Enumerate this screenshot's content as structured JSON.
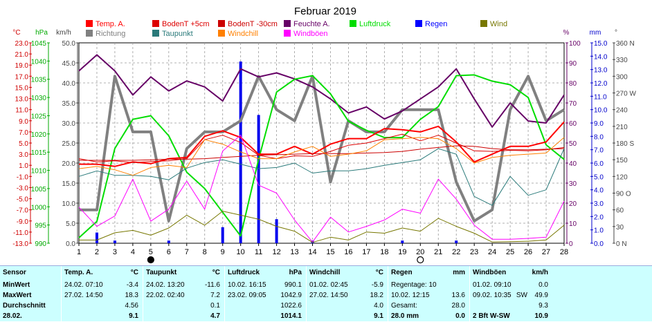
{
  "chart_data": {
    "type": "line",
    "title": "Februar 2019",
    "x": [
      1,
      2,
      3,
      4,
      5,
      6,
      7,
      8,
      9,
      10,
      11,
      12,
      13,
      14,
      15,
      16,
      17,
      18,
      19,
      20,
      21,
      22,
      23,
      24,
      25,
      26,
      27,
      28
    ],
    "x_ticks": [
      "1",
      "2",
      "3",
      "4",
      "5",
      "6",
      "7",
      "8",
      "9",
      "10",
      "11",
      "12",
      "13",
      "14",
      "15",
      "16",
      "17",
      "18",
      "19",
      "20",
      "21",
      "22",
      "23",
      "24",
      "25",
      "26",
      "27",
      "28"
    ],
    "left_axes": [
      {
        "unit": "°C",
        "color": "#d00000",
        "ticks": [
          "23.0",
          "21.0",
          "19.0",
          "17.0",
          "15.0",
          "13.0",
          "11.0",
          "9.0",
          "7.0",
          "5.0",
          "3.0",
          "1.0",
          "-1.0",
          "-3.0",
          "-5.0",
          "-7.0",
          "-9.0",
          "-11.0",
          "-13.0"
        ]
      },
      {
        "unit": "hPa",
        "color": "#00aa00",
        "ticks": [
          "1045",
          "1040",
          "1035",
          "1030",
          "1025",
          "1020",
          "1015",
          "1010",
          "1005",
          "1000",
          "995",
          "990"
        ]
      },
      {
        "unit": "km/h",
        "color": "#444444",
        "ticks": [
          "50.0",
          "45.0",
          "40.0",
          "35.0",
          "30.0",
          "25.0",
          "20.0",
          "15.0",
          "10.0",
          "5.0",
          "0.0"
        ]
      }
    ],
    "right_axes": [
      {
        "unit": "%",
        "color": "#660066",
        "ticks": [
          "100",
          "90",
          "80",
          "70",
          "60",
          "50",
          "40",
          "30",
          "20",
          "10",
          "0"
        ]
      },
      {
        "unit": "mm",
        "color": "#0000cc",
        "ticks": [
          "15.0",
          "14.0",
          "13.0",
          "12.0",
          "11.0",
          "10.0",
          "9.0",
          "8.0",
          "7.0",
          "6.0",
          "5.0",
          "4.0",
          "3.0",
          "2.0",
          "1.0",
          "0.0"
        ]
      },
      {
        "unit": "°",
        "color": "#444444",
        "ticks": [
          "360 N",
          "330",
          "300",
          "270 W",
          "240",
          "210",
          "180 S",
          "150",
          "120",
          "90 O",
          "60",
          "30",
          "0 N"
        ]
      }
    ],
    "ylim_temp": [
      -13,
      23
    ],
    "ylim_pressure": [
      990,
      1045
    ],
    "ylim_wind": [
      0,
      50
    ],
    "ylim_humidity": [
      0,
      100
    ],
    "ylim_rain": [
      0,
      15
    ],
    "ylim_direction": [
      0,
      360
    ],
    "legend": [
      {
        "name": "Temp. A.",
        "color": "#ff0000"
      },
      {
        "name": "BodenT +5cm",
        "color": "#dd0000"
      },
      {
        "name": "BodenT -30cm",
        "color": "#cc0000"
      },
      {
        "name": "Feuchte A.",
        "color": "#660066"
      },
      {
        "name": "Luftdruck",
        "color": "#00dd00"
      },
      {
        "name": "Regen",
        "color": "#0000ff"
      },
      {
        "name": "Wind",
        "color": "#777700"
      },
      {
        "name": "Richtung",
        "color": "#808080"
      },
      {
        "name": "Taupunkt",
        "color": "#2a7a7a"
      },
      {
        "name": "Windchill",
        "color": "#ff8000"
      },
      {
        "name": "Windböen",
        "color": "#ff00ff"
      }
    ],
    "series": [
      {
        "name": "Richtung",
        "axis": "direction",
        "color": "#808080",
        "width": 4,
        "values": [
          60,
          60,
          300,
          200,
          200,
          40,
          170,
          200,
          200,
          220,
          300,
          240,
          220,
          300,
          110,
          220,
          200,
          200,
          240,
          240,
          240,
          110,
          40,
          60,
          240,
          300,
          220,
          240
        ]
      },
      {
        "name": "Feuchte A.",
        "axis": "humidity",
        "color": "#660066",
        "width": 2,
        "values": [
          86,
          94,
          86,
          74,
          83,
          76,
          81,
          78,
          71,
          87,
          83,
          85,
          82,
          78,
          72,
          65,
          68,
          62,
          66,
          72,
          78,
          87,
          72,
          58,
          70,
          61,
          60,
          74
        ]
      },
      {
        "name": "Luftdruck",
        "axis": "pressure",
        "color": "#00dd00",
        "width": 2,
        "values": [
          991.5,
          996,
          1016,
          1024,
          1025,
          1019.5,
          1009.5,
          1005,
          998.5,
          992,
          1013,
          1031.5,
          1035,
          1036,
          1031,
          1023.5,
          1021,
          1019,
          1019,
          1024,
          1027.5,
          1036,
          1036.2,
          1034.5,
          1033.5,
          1030,
          1017,
          1013
        ]
      },
      {
        "name": "Temp. A.",
        "axis": "temp",
        "color": "#ff0000",
        "width": 2,
        "values": [
          1.2,
          1.2,
          0.8,
          1.6,
          1.3,
          2.2,
          2.4,
          6.2,
          7.2,
          6.0,
          3.0,
          3.0,
          4.4,
          3.0,
          4.8,
          5.8,
          5.8,
          7.6,
          7.4,
          7.0,
          8.0,
          5.2,
          1.6,
          3.0,
          4.4,
          4.4,
          5.2,
          8.8
        ]
      },
      {
        "name": "BodenT +5cm",
        "axis": "temp",
        "color": "#dd0000",
        "width": 1,
        "values": [
          2.2,
          1.6,
          1.8,
          1.5,
          1.7,
          1.8,
          2.2,
          5.6,
          6.4,
          5.1,
          2.8,
          2.2,
          2.7,
          2.6,
          3.5,
          4.6,
          5.0,
          5.8,
          6.6,
          5.4,
          6.4,
          5.0,
          3.6,
          3.5,
          3.7,
          3.6,
          3.8,
          4.2
        ]
      },
      {
        "name": "BodenT -30cm",
        "axis": "temp",
        "color": "#cc0000",
        "width": 1,
        "values": [
          1.9,
          1.9,
          1.9,
          1.9,
          2.0,
          2.1,
          2.1,
          2.2,
          2.4,
          2.6,
          2.8,
          2.9,
          3.0,
          3.1,
          3.1,
          3.1,
          3.2,
          3.3,
          3.5,
          3.9,
          4.2,
          4.5,
          4.4,
          4.0,
          3.8,
          3.8,
          3.9,
          4.0
        ]
      },
      {
        "name": "Taupunkt",
        "axis": "temp",
        "color": "#2a7a7a",
        "width": 1,
        "values": [
          -1.0,
          0.0,
          -0.8,
          -0.8,
          -1.0,
          -1.6,
          0.5,
          1.5,
          2.0,
          1.2,
          0.4,
          0.6,
          1.4,
          -0.4,
          0.0,
          0.0,
          0.4,
          1.0,
          1.5,
          2.0,
          4.0,
          3.0,
          -4.6,
          -6.2,
          -1.0,
          -4.4,
          -3.4,
          4.0
        ]
      },
      {
        "name": "Windchill",
        "axis": "temp",
        "color": "#ff8000",
        "width": 1,
        "values": [
          0.4,
          0.8,
          0.2,
          -0.8,
          0.6,
          1.0,
          0.6,
          5.6,
          4.8,
          3.4,
          2.2,
          2.2,
          3.4,
          4.4,
          2.6,
          3.0,
          3.6,
          5.6,
          5.8,
          6.0,
          5.8,
          4.0,
          1.4,
          2.4,
          2.8,
          3.0,
          3.2,
          6.0
        ]
      },
      {
        "name": "Windböen",
        "axis": "wind",
        "color": "#ff00ff",
        "width": 1,
        "values": [
          9.0,
          4.2,
          6.8,
          16.0,
          5.5,
          8.5,
          15.5,
          8.5,
          23.0,
          27.0,
          14.5,
          12.5,
          5.8,
          0.3,
          6.5,
          2.8,
          4.2,
          5.8,
          8.5,
          7.5,
          16.0,
          11.0,
          4.5,
          1.0,
          1.0,
          1.2,
          1.5,
          10.5
        ]
      },
      {
        "name": "Wind",
        "axis": "wind",
        "color": "#777700",
        "width": 1,
        "values": [
          0.8,
          0.8,
          2.6,
          3.2,
          2.0,
          3.8,
          7.0,
          4.5,
          8.0,
          7.0,
          6.0,
          4.2,
          3.0,
          0.2,
          1.5,
          0.8,
          2.8,
          2.5,
          3.8,
          3.0,
          6.2,
          4.2,
          2.5,
          0.3,
          0.4,
          0.5,
          0.8,
          4.5
        ]
      },
      {
        "name": "Regen",
        "axis": "rain",
        "type": "bar",
        "color": "#0000ee",
        "values": [
          0.0,
          0.8,
          0.2,
          0.0,
          0.0,
          0.2,
          0.0,
          0.0,
          1.2,
          13.6,
          9.6,
          1.8,
          0.0,
          0.2,
          0.0,
          0.0,
          0.0,
          0.0,
          0.2,
          0.0,
          0.0,
          0.2,
          0.0,
          0.0,
          0.0,
          0.0,
          0.0,
          0.0
        ]
      }
    ],
    "moon_markers": [
      {
        "x": 5,
        "phase": "new"
      },
      {
        "x": 20,
        "phase": "full"
      }
    ],
    "grid": true,
    "legend_placement": "top"
  },
  "stats": {
    "columns": [
      {
        "header": "Sensor",
        "unit": "",
        "rows": [
          {
            "label": "MinWert",
            "val": ""
          },
          {
            "label": "MaxWert",
            "val": ""
          },
          {
            "label": "Durchschnitt",
            "val": ""
          },
          {
            "label": "28.02.",
            "val": ""
          }
        ]
      },
      {
        "header": "Temp. A.",
        "unit": "°C",
        "rows": [
          {
            "label": "24.02. 07:10",
            "val": "-3.4"
          },
          {
            "label": "27.02. 14:50",
            "val": "18.3"
          },
          {
            "label": "",
            "val": "4.56"
          },
          {
            "label": "",
            "val": "9.1"
          }
        ]
      },
      {
        "header": "Taupunkt",
        "unit": "°C",
        "rows": [
          {
            "label": "24.02. 13:20",
            "val": "-11.6"
          },
          {
            "label": "22.02. 02:40",
            "val": "7.2"
          },
          {
            "label": "",
            "val": "0.1"
          },
          {
            "label": "",
            "val": "4.7"
          }
        ]
      },
      {
        "header": "Luftdruck",
        "unit": "hPa",
        "rows": [
          {
            "label": "10.02. 16:15",
            "val": "990.1"
          },
          {
            "label": "23.02. 09:05",
            "val": "1042.9"
          },
          {
            "label": "",
            "val": "1022.6"
          },
          {
            "label": "",
            "val": "1014.1"
          }
        ]
      },
      {
        "header": "Windchill",
        "unit": "°C",
        "rows": [
          {
            "label": "01.02. 02:45",
            "val": "-5.9"
          },
          {
            "label": "27.02. 14:50",
            "val": "18.2"
          },
          {
            "label": "",
            "val": "4.0"
          },
          {
            "label": "",
            "val": "9.1"
          }
        ]
      },
      {
        "header": "Regen",
        "unit": "mm",
        "rows": [
          {
            "label": "Regentage: 10",
            "val": ""
          },
          {
            "label": "10.02. 12:15",
            "val": "13.6"
          },
          {
            "label": "Gesamt:",
            "val": "28.0"
          },
          {
            "label": "28.0 mm",
            "val": "0.0"
          }
        ]
      },
      {
        "header": "Windböen",
        "unit": "km/h",
        "rows": [
          {
            "label": "01.02. 09:10",
            "val": "0.0"
          },
          {
            "label": "09.02. 10:35",
            "mid": "SW",
            "val": "49.9"
          },
          {
            "label": "",
            "val": "9.3"
          },
          {
            "label": "2 Bft W-SW",
            "val": "10.9"
          }
        ]
      }
    ]
  }
}
